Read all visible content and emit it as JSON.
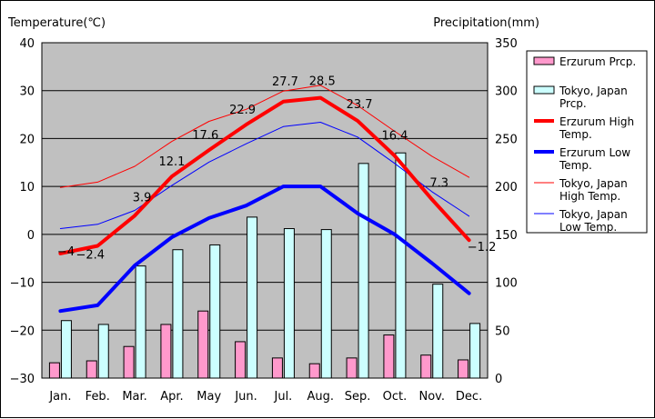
{
  "chart_data": {
    "type": "bar+line",
    "left_axis_label": "Temperature(℃)",
    "right_axis_label": "Precipitation(mm)",
    "categories": [
      "Jan.",
      "Feb.",
      "Mar.",
      "Apr.",
      "May",
      "Jun.",
      "Jul.",
      "Aug.",
      "Sep.",
      "Oct.",
      "Nov.",
      "Dec."
    ],
    "temp_ylim": [
      -30,
      40
    ],
    "temp_ticks": [
      40,
      30,
      20,
      10,
      0,
      -10,
      -20,
      -30
    ],
    "temp_tick_labels": [
      "40",
      "30",
      "20",
      "10",
      "0",
      "−10",
      "−20",
      "−30"
    ],
    "precip_ylim": [
      0,
      350
    ],
    "precip_ticks": [
      350,
      300,
      250,
      200,
      150,
      100,
      50,
      0
    ],
    "precip_tick_labels": [
      "350",
      "300",
      "250",
      "200",
      "150",
      "100",
      "50",
      "0"
    ],
    "grid": true,
    "plot_background": "#c0c0c0",
    "bar_series": [
      {
        "name": "Erzurum Prcp.",
        "color": "#ff99cc",
        "values": [
          16,
          18,
          33,
          56,
          70,
          38,
          21,
          15,
          21,
          45,
          24,
          19
        ]
      },
      {
        "name": "Tokyo, Japan Prcp.",
        "color": "#ccffff",
        "values": [
          60,
          56,
          117,
          134,
          139,
          168,
          156,
          155,
          224,
          235,
          98,
          57
        ]
      }
    ],
    "line_series": [
      {
        "name": "Erzurum High Temp.",
        "color": "#ff0000",
        "width": 4,
        "values": [
          -4,
          -2.4,
          3.9,
          12.1,
          17.6,
          22.9,
          27.7,
          28.5,
          23.7,
          16.4,
          7.3,
          -1.2
        ]
      },
      {
        "name": "Erzurum Low Temp.",
        "color": "#0000ff",
        "width": 4,
        "values": [
          -16,
          -14.8,
          -6.5,
          -0.6,
          3.4,
          6,
          10,
          10,
          4.4,
          0,
          -6,
          -12.3
        ]
      },
      {
        "name": "Tokyo, Japan High Temp.",
        "color": "#ff0000",
        "width": 1,
        "values": [
          9.8,
          10.9,
          14.2,
          19.4,
          23.6,
          26.1,
          29.9,
          31.1,
          26.9,
          21.5,
          16.3,
          11.9
        ]
      },
      {
        "name": "Tokyo, Japan Low Temp.",
        "color": "#0000ff",
        "width": 1,
        "values": [
          1.2,
          2.1,
          5,
          10.2,
          15.1,
          18.9,
          22.5,
          23.4,
          20.3,
          14.8,
          8.9,
          3.8
        ]
      }
    ],
    "data_labels": [
      "−4",
      "−2.4",
      "3.9",
      "12.1",
      "17.6",
      "22.9",
      "27.7",
      "28.5",
      "23.7",
      "16.4",
      "7.3",
      "−1.2"
    ],
    "legend": {
      "placement": "right",
      "items": [
        {
          "key": "erz_prcp",
          "lines": [
            "Erzurum Prcp."
          ],
          "kind": "bar",
          "fill": "#ff99cc"
        },
        {
          "key": "tokyo_prcp",
          "lines": [
            "Tokyo, Japan",
            "Prcp."
          ],
          "kind": "bar",
          "fill": "#ccffff"
        },
        {
          "key": "erz_high",
          "lines": [
            "Erzurum High",
            "Temp."
          ],
          "kind": "thick-line",
          "stroke": "#ff0000"
        },
        {
          "key": "erz_low",
          "lines": [
            "Erzurum Low",
            "Temp."
          ],
          "kind": "thick-line",
          "stroke": "#0000ff"
        },
        {
          "key": "tokyo_high",
          "lines": [
            "Tokyo, Japan",
            "High Temp."
          ],
          "kind": "thin-line",
          "stroke": "#ff0000"
        },
        {
          "key": "tokyo_low",
          "lines": [
            "Tokyo, Japan",
            "Low Temp."
          ],
          "kind": "thin-line",
          "stroke": "#0000ff"
        }
      ]
    }
  }
}
